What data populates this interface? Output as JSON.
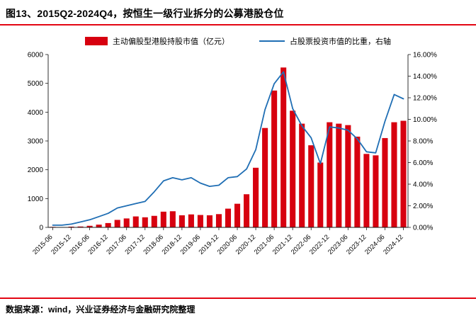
{
  "header": {
    "title": "图13、2015Q2-2024Q4，按恒生一级行业拆分的公募港股仓位"
  },
  "footer": {
    "source": "数据来源：wind，兴业证券经济与金融研究院整理"
  },
  "colors": {
    "bar": "#d7000f",
    "line": "#1f6eb4",
    "rule": "#e30613",
    "axis": "#1a1a1a",
    "text": "#000000"
  },
  "chart_data": {
    "type": "bar",
    "combo": "bar+line",
    "title": "图13、2015Q2-2024Q4，按恒生一级行业拆分的公募港股仓位",
    "legend": [
      {
        "label": "主动偏股型港股持股市值（亿元）",
        "color": "#d7000f",
        "marker": "rect",
        "axis": "left"
      },
      {
        "label": "占股票投资市值的比重，右轴",
        "color": "#1f6eb4",
        "marker": "line",
        "axis": "right"
      }
    ],
    "x_quarters": [
      "2015-06",
      "2015-09",
      "2015-12",
      "2016-03",
      "2016-06",
      "2016-09",
      "2016-12",
      "2017-03",
      "2017-06",
      "2017-09",
      "2017-12",
      "2018-03",
      "2018-06",
      "2018-09",
      "2018-12",
      "2019-03",
      "2019-06",
      "2019-09",
      "2019-12",
      "2020-03",
      "2020-06",
      "2020-09",
      "2020-12",
      "2021-03",
      "2021-06",
      "2021-09",
      "2021-12",
      "2022-03",
      "2022-06",
      "2022-09",
      "2022-12",
      "2023-03",
      "2023-06",
      "2023-09",
      "2023-12",
      "2024-03",
      "2024-06",
      "2024-09",
      "2024-12"
    ],
    "x_tick_every": 2,
    "series": [
      {
        "name": "主动偏股型港股持股市值（亿元）",
        "type": "bar",
        "axis": "left",
        "values": [
          18,
          12,
          25,
          30,
          55,
          95,
          150,
          260,
          310,
          380,
          350,
          400,
          545,
          560,
          420,
          450,
          430,
          420,
          460,
          650,
          820,
          1150,
          2070,
          3450,
          4750,
          5550,
          4050,
          3600,
          2850,
          2250,
          3650,
          3600,
          3550,
          3150,
          2550,
          2500,
          3100,
          3650,
          3700
        ]
      },
      {
        "name": "占股票投资市值的比重，右轴",
        "type": "line",
        "axis": "right",
        "values": [
          0.2,
          0.2,
          0.3,
          0.5,
          0.7,
          1.0,
          1.3,
          1.8,
          2.0,
          2.2,
          2.4,
          3.3,
          4.3,
          4.6,
          4.4,
          4.6,
          4.1,
          3.8,
          3.9,
          4.6,
          4.7,
          5.4,
          7.2,
          10.9,
          13.3,
          14.4,
          11.0,
          9.4,
          8.3,
          5.9,
          9.3,
          9.2,
          9.0,
          8.2,
          7.0,
          6.9,
          9.8,
          12.3,
          11.9
        ]
      }
    ],
    "left_axis": {
      "min": 0,
      "max": 6000,
      "step": 1000,
      "ticks": [
        "0",
        "1000",
        "2000",
        "3000",
        "4000",
        "5000",
        "6000"
      ]
    },
    "right_axis": {
      "min": 0,
      "max": 16,
      "step": 2,
      "decimals": 2,
      "suffix": "%",
      "ticks": [
        "0.00%",
        "2.00%",
        "4.00%",
        "6.00%",
        "8.00%",
        "10.00%",
        "12.00%",
        "14.00%",
        "16.00%"
      ]
    },
    "grid": false,
    "legend_position": "top-center"
  }
}
